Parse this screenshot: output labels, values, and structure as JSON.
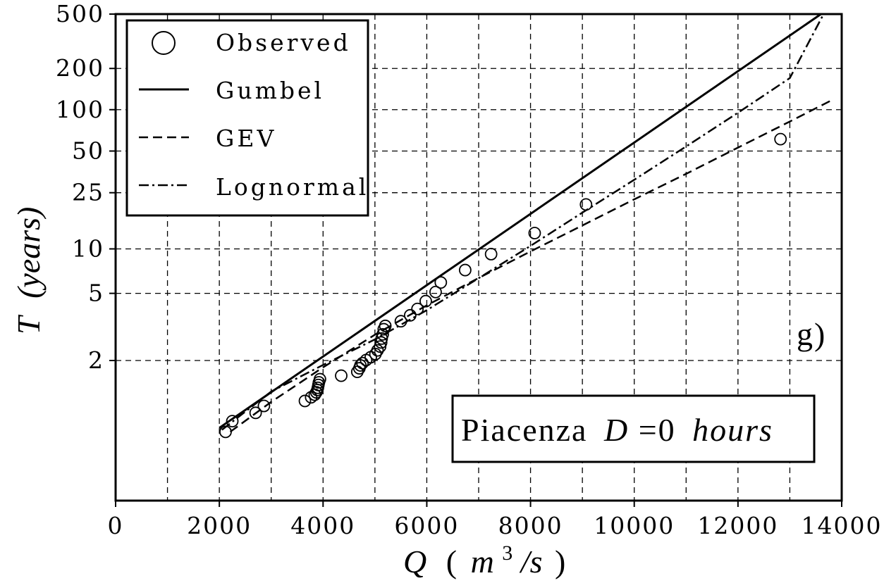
{
  "chart_data": {
    "type": "scatter",
    "xlabel": {
      "var": "Q",
      "paren_open": "(",
      "unit_base": "m",
      "unit_sup": "3",
      "unit_rest": "/s",
      "paren_close": ")"
    },
    "ylabel": {
      "var": "T",
      "unit": "(years)"
    },
    "xlim": [
      0,
      14000
    ],
    "ylim": [
      1,
      500
    ],
    "yscale": "gumbel-reduced-variate",
    "grid": true,
    "x_ticks": [
      "0",
      "2000",
      "4000",
      "6000",
      "8000",
      "10000",
      "12000",
      "14000"
    ],
    "x_tick_values": [
      0,
      2000,
      4000,
      6000,
      8000,
      10000,
      12000,
      14000
    ],
    "x_minor_gridlines": [
      1000,
      3000,
      5000,
      7000,
      9000,
      11000,
      13000
    ],
    "y_ticks": [
      "2",
      "5",
      "10",
      "25",
      "50",
      "100",
      "200",
      "500"
    ],
    "y_tick_values": [
      2,
      5,
      10,
      25,
      50,
      100,
      200,
      500
    ],
    "legend": {
      "position": "top-left",
      "entries": [
        {
          "label": "Observed",
          "style": "circle"
        },
        {
          "label": "Gumbel",
          "style": "solid"
        },
        {
          "label": "GEV",
          "style": "dashed"
        },
        {
          "label": "Lognormal",
          "style": "dashdot"
        }
      ]
    },
    "panel_label": "g)",
    "annotation": {
      "station": "Piacenza",
      "var": "D",
      "eq": "=0",
      "unit": "hours"
    },
    "series": [
      {
        "name": "Observed",
        "style": "circle",
        "points": [
          [
            2120,
            1.11
          ],
          [
            2250,
            1.17
          ],
          [
            2700,
            1.23
          ],
          [
            2860,
            1.29
          ],
          [
            3650,
            1.34
          ],
          [
            3770,
            1.38
          ],
          [
            3840,
            1.41
          ],
          [
            3870,
            1.44
          ],
          [
            3890,
            1.47
          ],
          [
            3900,
            1.5
          ],
          [
            3910,
            1.54
          ],
          [
            3920,
            1.58
          ],
          [
            3940,
            1.63
          ],
          [
            4350,
            1.69
          ],
          [
            4660,
            1.76
          ],
          [
            4700,
            1.83
          ],
          [
            4720,
            1.89
          ],
          [
            4760,
            1.94
          ],
          [
            4830,
            2.01
          ],
          [
            4920,
            2.08
          ],
          [
            5010,
            2.16
          ],
          [
            5050,
            2.26
          ],
          [
            5100,
            2.37
          ],
          [
            5120,
            2.5
          ],
          [
            5130,
            2.63
          ],
          [
            5150,
            2.78
          ],
          [
            5170,
            2.98
          ],
          [
            5200,
            3.12
          ],
          [
            5500,
            3.33
          ],
          [
            5680,
            3.62
          ],
          [
            5820,
            3.97
          ],
          [
            5980,
            4.45
          ],
          [
            6170,
            5.1
          ],
          [
            6270,
            5.9
          ],
          [
            6740,
            7.15
          ],
          [
            7240,
            9.2
          ],
          [
            8080,
            12.9
          ],
          [
            9070,
            20.6
          ],
          [
            12820,
            61.0
          ]
        ]
      },
      {
        "name": "Gumbel",
        "style": "solid",
        "points": [
          [
            2000,
            1.13
          ],
          [
            13600,
            500
          ]
        ]
      },
      {
        "name": "GEV",
        "style": "dashed",
        "points": [
          [
            2210,
            1.11
          ],
          [
            3000,
            1.33
          ],
          [
            4000,
            1.85
          ],
          [
            5000,
            2.77
          ],
          [
            6000,
            4.18
          ],
          [
            7000,
            6.32
          ],
          [
            8000,
            9.6
          ],
          [
            9000,
            14.6
          ],
          [
            10000,
            22.4
          ],
          [
            11000,
            34.2
          ],
          [
            12000,
            53.0
          ],
          [
            13000,
            82.0
          ],
          [
            13820,
            118
          ]
        ]
      },
      {
        "name": "Lognormal",
        "style": "dashdot",
        "points": [
          [
            2050,
            1.12
          ],
          [
            3000,
            1.45
          ],
          [
            4000,
            1.9
          ],
          [
            5000,
            2.6
          ],
          [
            6000,
            3.9
          ],
          [
            7000,
            6.3
          ],
          [
            8000,
            10.5
          ],
          [
            9000,
            18.0
          ],
          [
            10000,
            31.0
          ],
          [
            11000,
            54.0
          ],
          [
            12000,
            95.0
          ],
          [
            13000,
            170
          ],
          [
            13650,
            500
          ]
        ]
      }
    ]
  }
}
